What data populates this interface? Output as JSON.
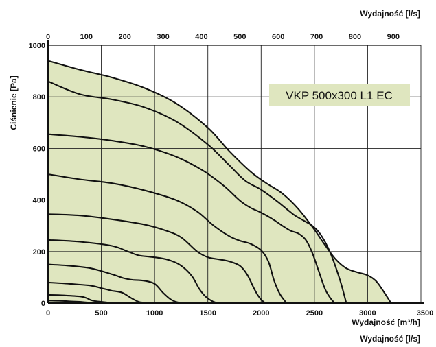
{
  "chart_data": {
    "type": "line",
    "title": "VKP 500x300 L1 EC",
    "ylabel": "Ciśnienie [Pa]",
    "xlabel_bottom": "Wydajność [m³/h]",
    "xlabel_bottom2": "Wydajność [l/s]",
    "xlabel_top": "Wydajność [l/s]",
    "xlim": [
      0,
      3500
    ],
    "ylim": [
      0,
      1000
    ],
    "top_xlim": [
      0,
      972
    ],
    "x_ticks": [
      0,
      500,
      1000,
      1500,
      2000,
      2500,
      3000,
      3500
    ],
    "y_ticks": [
      0,
      200,
      400,
      600,
      800,
      1000
    ],
    "top_ticks": [
      0,
      100,
      200,
      300,
      400,
      500,
      600,
      700,
      800,
      900
    ],
    "grid": true,
    "fill_color": "#dfe6bf",
    "envelope": {
      "x": [
        0,
        300,
        600,
        900,
        1200,
        1500,
        1700,
        1900,
        2050,
        2200,
        2350,
        2500,
        2600,
        2700,
        2800,
        2900,
        3000,
        3080,
        3150,
        3220
      ],
      "y": [
        940,
        905,
        875,
        835,
        775,
        680,
        590,
        510,
        465,
        425,
        365,
        285,
        225,
        170,
        135,
        120,
        108,
        85,
        45,
        0
      ]
    },
    "series": [
      {
        "x": [
          0,
          300,
          600,
          900,
          1200,
          1500,
          1700,
          1850,
          2000,
          2150,
          2300,
          2400,
          2480,
          2560,
          2650,
          2740,
          2800
        ],
        "y": [
          860,
          810,
          790,
          760,
          705,
          615,
          535,
          475,
          440,
          395,
          345,
          320,
          300,
          265,
          195,
          90,
          0
        ]
      },
      {
        "x": [
          0,
          300,
          600,
          900,
          1200,
          1450,
          1650,
          1800,
          1900,
          1980,
          2050,
          2130,
          2200,
          2280,
          2350,
          2420,
          2480,
          2540,
          2600,
          2650,
          2690
        ],
        "y": [
          655,
          645,
          630,
          608,
          568,
          515,
          455,
          398,
          370,
          355,
          340,
          320,
          300,
          280,
          270,
          245,
          195,
          125,
          55,
          20,
          0
        ]
      },
      {
        "x": [
          0,
          300,
          600,
          900,
          1200,
          1400,
          1550,
          1700,
          1800,
          1900,
          2000,
          2070,
          2120,
          2170,
          2210,
          2240
        ],
        "y": [
          500,
          480,
          465,
          438,
          400,
          355,
          302,
          260,
          242,
          230,
          205,
          160,
          90,
          40,
          15,
          0
        ]
      },
      {
        "x": [
          0,
          300,
          600,
          900,
          1100,
          1250,
          1400,
          1500,
          1600,
          1700,
          1800,
          1870,
          1930,
          1970,
          2010,
          2040
        ],
        "y": [
          345,
          340,
          325,
          305,
          282,
          255,
          200,
          178,
          170,
          162,
          145,
          110,
          60,
          30,
          10,
          0
        ]
      },
      {
        "x": [
          0,
          300,
          600,
          750,
          850,
          950,
          1050,
          1150,
          1250,
          1350,
          1420,
          1480,
          1540,
          1590
        ],
        "y": [
          245,
          238,
          222,
          200,
          185,
          180,
          175,
          165,
          145,
          105,
          55,
          25,
          8,
          0
        ]
      },
      {
        "x": [
          0,
          200,
          400,
          600,
          700,
          750,
          800,
          900,
          1000,
          1080,
          1150,
          1200,
          1260
        ],
        "y": [
          150,
          145,
          135,
          112,
          98,
          93,
          90,
          87,
          75,
          40,
          15,
          5,
          0
        ]
      },
      {
        "x": [
          0,
          200,
          400,
          500,
          560,
          600,
          650,
          700,
          780,
          850,
          900,
          950
        ],
        "y": [
          80,
          75,
          68,
          58,
          52,
          48,
          45,
          40,
          20,
          5,
          2,
          0
        ]
      },
      {
        "x": [
          0,
          150,
          300,
          360,
          400,
          440,
          500,
          560,
          620
        ],
        "y": [
          32,
          30,
          26,
          20,
          12,
          8,
          5,
          2,
          0
        ]
      },
      {
        "x": [
          0,
          100,
          200,
          300,
          360,
          400,
          440,
          480,
          520
        ],
        "y": [
          10,
          9,
          7,
          5,
          3,
          2,
          1,
          0.5,
          0
        ]
      }
    ]
  }
}
